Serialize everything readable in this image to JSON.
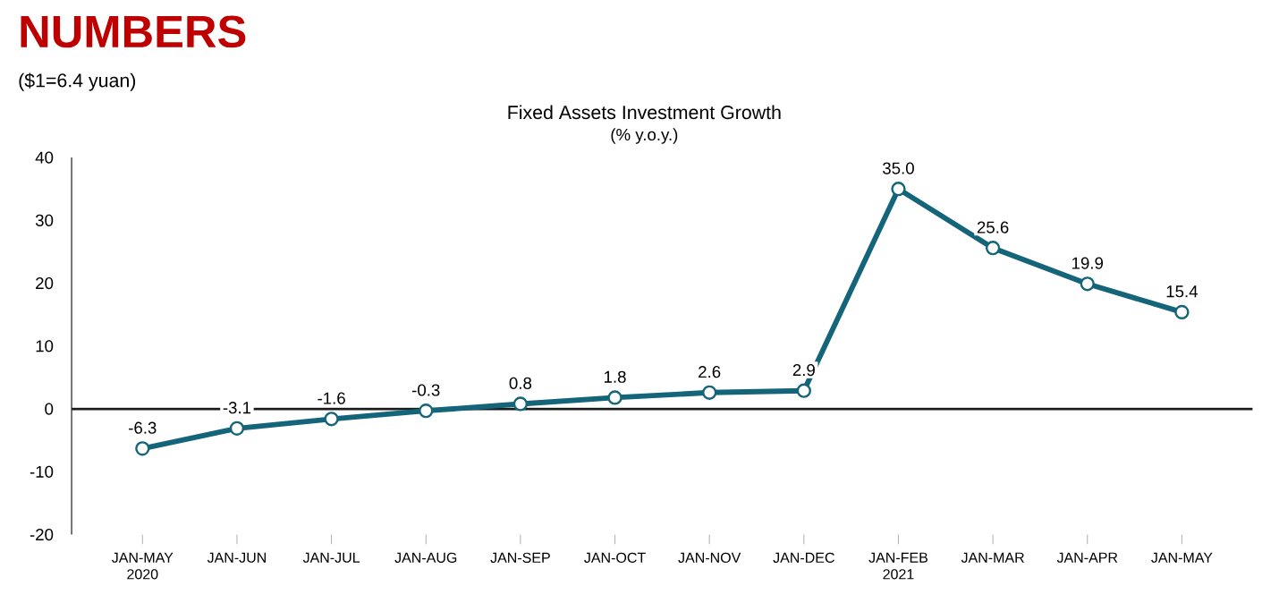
{
  "chart_data": {
    "type": "line",
    "title": "Fixed Assets Investment Growth",
    "subtitle": "(% y.o.y.)",
    "annotations": [
      "NUMBERS",
      "($1=6.4 yuan)"
    ],
    "categories": [
      "JAN-MAY 2020",
      "JAN-JUN",
      "JAN-JUL",
      "JAN-AUG",
      "JAN-SEP",
      "JAN-OCT",
      "JAN-NOV",
      "JAN-DEC",
      "JAN-FEB 2021",
      "JAN-MAR",
      "JAN-APR",
      "JAN-MAY"
    ],
    "series": [
      {
        "color": "#14647a",
        "values": [
          -6.3,
          -3.1,
          -1.6,
          -0.3,
          0.8,
          1.8,
          2.6,
          2.9,
          35.0,
          25.6,
          19.9,
          15.4
        ]
      }
    ],
    "value_labels": [
      "-6.3",
      "-3.1",
      "-1.6",
      "-0.3",
      "0.8",
      "1.8",
      "2.6",
      "2.9",
      "35.0",
      "25.6",
      "19.9",
      "15.4"
    ],
    "ylim": [
      -20,
      40
    ],
    "yticks": [
      -20,
      -10,
      0,
      10,
      20,
      30,
      40
    ],
    "ref_lines": [
      {
        "axis": "y",
        "value": 0,
        "color": "#1a1a1a"
      }
    ],
    "marker": "circle",
    "line_style": "solid"
  }
}
